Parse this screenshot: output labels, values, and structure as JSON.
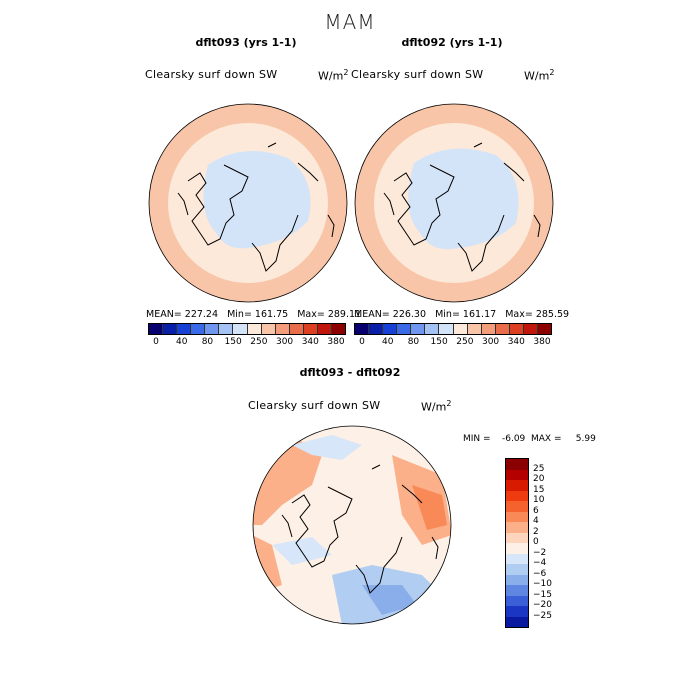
{
  "season": "MAM",
  "panel_left": {
    "title": "dflt093 (yrs 1-1)",
    "variable": "Clearsky surf down SW",
    "units": "W/m",
    "stats": "MEAN= 227.24   Min= 161.75   Max= 289.11"
  },
  "panel_right": {
    "title": "dflt092 (yrs 1-1)",
    "variable": "Clearsky surf down SW",
    "units": "W/m",
    "stats": "MEAN= 226.30   Min= 161.17   Max= 285.59"
  },
  "panel_diff": {
    "title": "dflt093 - dflt092",
    "variable": "Clearsky surf down SW",
    "units": "W/m",
    "minmax": "MIN =    -6.09  MAX =     5.99"
  },
  "units_exponent": "2",
  "top_colorbar": {
    "tick_labels": [
      "0",
      "40",
      "80",
      "150",
      "250",
      "300",
      "340",
      "380"
    ],
    "colors": [
      "#08006e",
      "#0a1fa8",
      "#1740d6",
      "#3a6ae8",
      "#6f97f0",
      "#a5c2f5",
      "#d4e4f8",
      "#fde9d9",
      "#f8c5a8",
      "#f39d7c",
      "#ea6d4b",
      "#dd3f22",
      "#c0160b",
      "#8b0000"
    ]
  },
  "diff_colorbar": {
    "tick_labels": [
      "25",
      "20",
      "15",
      "10",
      "6",
      "4",
      "2",
      "0",
      "−2",
      "−4",
      "−6",
      "−10",
      "−15",
      "−20",
      "−25"
    ],
    "colors": [
      "#8b0000",
      "#b50000",
      "#d81b00",
      "#ee3b10",
      "#f6622d",
      "#f98a57",
      "#fbb08a",
      "#fdd5bd",
      "#fdf0e6",
      "#d7e6f8",
      "#b2cdf2",
      "#8aaeea",
      "#5f86e0",
      "#3a5fd6",
      "#1b36c2",
      "#0a1aa0"
    ]
  }
}
